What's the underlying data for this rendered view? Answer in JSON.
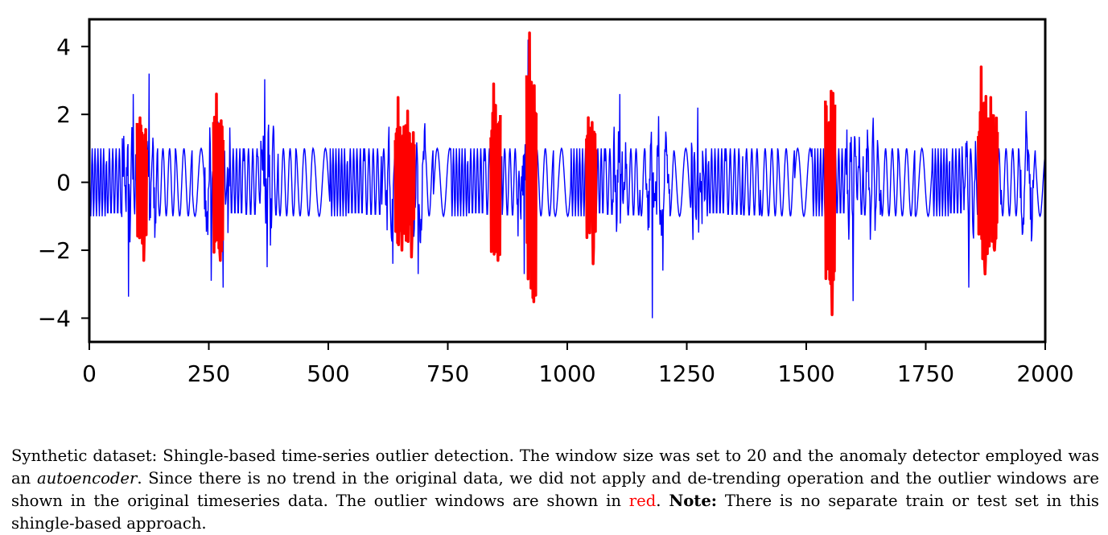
{
  "chart_data": {
    "type": "line",
    "title": "",
    "xlabel": "",
    "ylabel": "",
    "xlim": [
      0,
      2000
    ],
    "ylim": [
      -4.7,
      4.8
    ],
    "xticks": [
      0,
      250,
      500,
      750,
      1000,
      1250,
      1500,
      1750,
      2000
    ],
    "xtick_labels": [
      "0",
      "250",
      "500",
      "750",
      "1000",
      "1250",
      "1500",
      "1750",
      "2000"
    ],
    "yticks": [
      4,
      2,
      0,
      -2,
      -4
    ],
    "ytick_labels": [
      "4",
      "2",
      "0",
      "−2",
      "−4"
    ],
    "series": [
      {
        "name": "time series",
        "color": "#0000ff",
        "base_signal": "alternating oscillation between -1 and 1",
        "spikes": [
          {
            "x": 82,
            "y": -3.1
          },
          {
            "x": 92,
            "y": 2.6
          },
          {
            "x": 125,
            "y": 3.2
          },
          {
            "x": 255,
            "y": -2.9
          },
          {
            "x": 280,
            "y": -3.1
          },
          {
            "x": 367,
            "y": 3.0
          },
          {
            "x": 372,
            "y": -2.5
          },
          {
            "x": 635,
            "y": -2.4
          },
          {
            "x": 688,
            "y": -2.7
          },
          {
            "x": 918,
            "y": 3.6
          },
          {
            "x": 910,
            "y": -2.7
          },
          {
            "x": 1110,
            "y": 2.6
          },
          {
            "x": 1178,
            "y": -4.0
          },
          {
            "x": 1200,
            "y": -2.6
          },
          {
            "x": 1273,
            "y": 2.2
          },
          {
            "x": 1598,
            "y": -3.5
          },
          {
            "x": 1640,
            "y": 1.9
          },
          {
            "x": 1840,
            "y": -3.1
          },
          {
            "x": 1960,
            "y": 2.1
          }
        ]
      },
      {
        "name": "outlier windows",
        "color": "#ff0000",
        "windows": [
          {
            "start": 100,
            "end": 120,
            "peaks": [
              1.9,
              -2.3
            ]
          },
          {
            "start": 260,
            "end": 280,
            "peaks": [
              2.6,
              -2.3
            ]
          },
          {
            "start": 640,
            "end": 660,
            "peaks": [
              2.5,
              -2.0
            ]
          },
          {
            "start": 660,
            "end": 680,
            "peaks": [
              2.1,
              -2.2
            ]
          },
          {
            "start": 840,
            "end": 860,
            "peaks": [
              2.9,
              -1.5
            ]
          },
          {
            "start": 915,
            "end": 935,
            "peaks": [
              4.4,
              -2.0
            ]
          },
          {
            "start": 1040,
            "end": 1060,
            "peaks": [
              1.0,
              -2.4
            ]
          },
          {
            "start": 1540,
            "end": 1560,
            "peaks": [
              0.8,
              -3.9
            ]
          },
          {
            "start": 1860,
            "end": 1880,
            "peaks": [
              3.4,
              -2.7
            ]
          },
          {
            "start": 1880,
            "end": 1900,
            "peaks": [
              2.5,
              -2.0
            ]
          }
        ]
      }
    ]
  },
  "caption": {
    "text1": "Synthetic dataset: Shingle-based time-series outlier detection. The window size was set to 20 and the anomaly detector employed was an ",
    "italic": "autoencoder",
    "text2": ". Since there is no trend in the original data, we did not apply and de-trending operation and the outlier windows are shown in the original timeseries data. The outlier windows are shown in ",
    "red_word": "red",
    "text3": ". ",
    "note_label": "Note:",
    "text4": " There is no separate train or test set in this shingle-based approach."
  }
}
